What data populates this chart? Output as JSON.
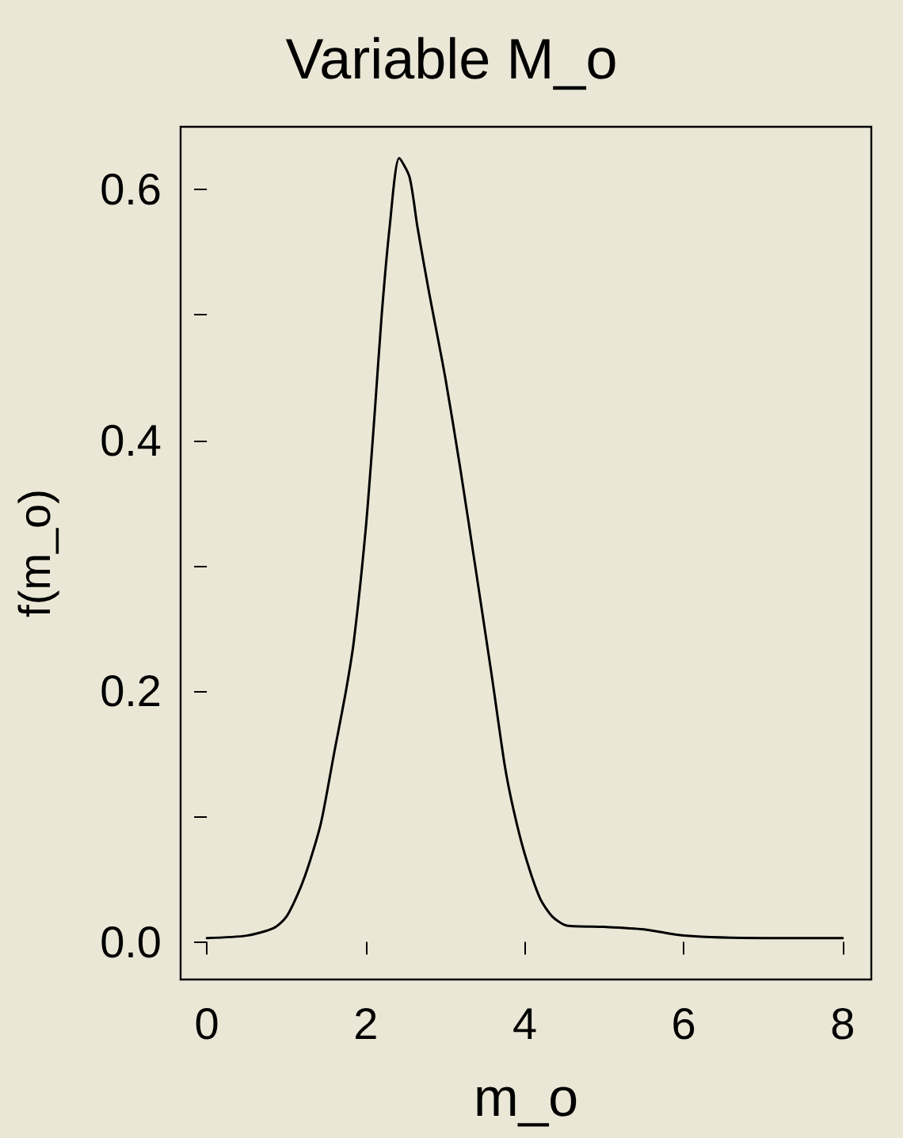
{
  "chart_data": {
    "type": "line",
    "title": "Variable M_o",
    "xlabel": "m_o",
    "ylabel": "f(m_o)",
    "series": [
      {
        "color": "#000000",
        "x": [
          0,
          0.5,
          0.84,
          1.0,
          1.17,
          1.3,
          1.44,
          1.6,
          1.75,
          1.85,
          2.0,
          2.11,
          2.2,
          2.3,
          2.42,
          2.55,
          2.65,
          2.79,
          3.0,
          3.19,
          3.4,
          3.59,
          3.75,
          3.86,
          4.0,
          4.19,
          4.35,
          4.53,
          5.0,
          5.5,
          6.0,
          7.0,
          8.0
        ],
        "values": [
          0.003,
          0.005,
          0.011,
          0.02,
          0.042,
          0.065,
          0.096,
          0.15,
          0.2,
          0.24,
          0.33,
          0.42,
          0.5,
          0.57,
          0.625,
          0.61,
          0.57,
          0.52,
          0.45,
          0.377,
          0.29,
          0.21,
          0.14,
          0.105,
          0.07,
          0.035,
          0.02,
          0.013,
          0.012,
          0.01,
          0.005,
          0.003,
          0.003
        ]
      }
    ],
    "xlim": [
      -0.33,
      8.36
    ],
    "xticks": [
      0,
      2,
      4,
      6,
      8
    ],
    "ylim": [
      -0.03,
      0.65
    ],
    "yticks": [
      {
        "value": 0,
        "label": "0.0"
      },
      {
        "value": 0.1,
        "label": null
      },
      {
        "value": 0.2,
        "label": "0.2"
      },
      {
        "value": 0.3,
        "label": null
      },
      {
        "value": 0.4,
        "label": "0.4"
      },
      {
        "value": 0.5,
        "label": null
      },
      {
        "value": 0.6,
        "label": "0.6"
      }
    ],
    "grid": false,
    "marker": "none",
    "line_style": "solid"
  }
}
